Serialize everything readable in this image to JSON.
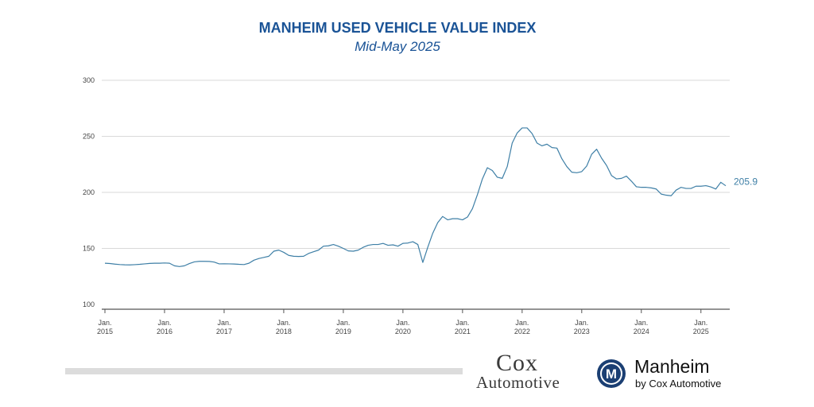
{
  "chart_data": {
    "type": "line",
    "title": "MANHEIM USED VEHICLE VALUE INDEX",
    "subtitle": "Mid-May 2025",
    "ylim": [
      100,
      300
    ],
    "y_ticks": [
      "100",
      "150",
      "200",
      "250",
      "300"
    ],
    "x_ticks": [
      {
        "line1": "Jan.",
        "line2": "2015",
        "month_index": 0
      },
      {
        "line1": "Jan.",
        "line2": "2016",
        "month_index": 12
      },
      {
        "line1": "Jan.",
        "line2": "2017",
        "month_index": 24
      },
      {
        "line1": "Jan.",
        "line2": "2018",
        "month_index": 36
      },
      {
        "line1": "Jan.",
        "line2": "2019",
        "month_index": 48
      },
      {
        "line1": "Jan.",
        "line2": "2020",
        "month_index": 60
      },
      {
        "line1": "Jan.",
        "line2": "2021",
        "month_index": 72
      },
      {
        "line1": "Jan.",
        "line2": "2022",
        "month_index": 84
      },
      {
        "line1": "Jan.",
        "line2": "2023",
        "month_index": 96
      },
      {
        "line1": "Jan.",
        "line2": "2024",
        "month_index": 108
      },
      {
        "line1": "Jan.",
        "line2": "2025",
        "month_index": 120
      }
    ],
    "series": [
      {
        "name": "Manheim Used Vehicle Value Index",
        "values": [
          136.8,
          136.5,
          136.0,
          135.6,
          135.4,
          135.3,
          135.5,
          135.8,
          136.2,
          136.6,
          136.8,
          136.8,
          137.0,
          136.8,
          134.5,
          133.8,
          134.5,
          136.5,
          138.0,
          138.5,
          138.5,
          138.4,
          137.8,
          136.2,
          136.3,
          136.2,
          136.1,
          135.8,
          135.6,
          136.8,
          139.5,
          141.0,
          142.0,
          143.0,
          147.5,
          148.5,
          146.5,
          143.8,
          143.0,
          142.8,
          143.0,
          145.5,
          147.0,
          148.5,
          152.0,
          152.3,
          153.5,
          152.0,
          150.0,
          147.8,
          147.5,
          148.5,
          151.0,
          152.8,
          153.5,
          153.5,
          154.5,
          152.8,
          153.2,
          152.0,
          154.5,
          154.8,
          156.0,
          153.5,
          137.5,
          151.0,
          163.5,
          173.0,
          178.5,
          175.5,
          176.5,
          176.5,
          175.5,
          178.0,
          185.5,
          198.0,
          212.0,
          222.0,
          219.5,
          213.5,
          212.5,
          223.0,
          244.0,
          253.0,
          257.5,
          257.5,
          252.5,
          244.0,
          241.5,
          243.0,
          240.0,
          239.5,
          230.0,
          223.0,
          218.0,
          217.5,
          218.5,
          223.5,
          234.0,
          238.5,
          230.5,
          224.0,
          215.0,
          212.0,
          212.5,
          214.5,
          210.0,
          205.0,
          204.5,
          204.5,
          204.0,
          203.0,
          198.5,
          197.5,
          197.0,
          202.0,
          204.5,
          203.5,
          203.5,
          205.5,
          205.5,
          206.0,
          204.8,
          203.0,
          209.0,
          205.9
        ],
        "end_label": "205.9"
      }
    ],
    "legend": "none",
    "grid": true
  },
  "colors": {
    "title": "#1a5396",
    "line": "#3e7fa6",
    "grid": "#d9d9d9",
    "axis": "#555555",
    "end_label": "#3e7fa6"
  },
  "logos": {
    "cox_top": "Cox",
    "cox_bottom": "Automotive",
    "manheim_name": "Manheim",
    "manheim_sub": "by Cox Automotive",
    "manheim_mark": "M"
  }
}
